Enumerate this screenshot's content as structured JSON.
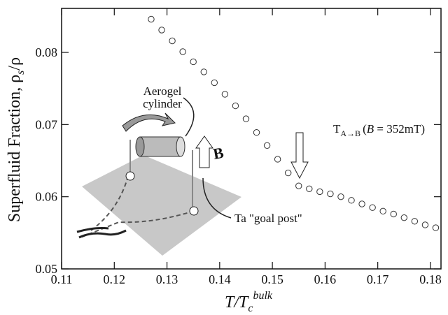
{
  "chart_data": {
    "type": "scatter",
    "xlabel_parts": [
      "T/T",
      "c",
      "bulk"
    ],
    "ylabel_parts": [
      "Superfluid Fraction, ρ",
      "s",
      "/ρ"
    ],
    "annotations": {
      "transition_parts": [
        "T",
        "A→B",
        "(",
        "B",
        " = 352mT)"
      ],
      "cylinder": [
        "Aerogel",
        "cylinder"
      ],
      "field": "B",
      "goal_post": "Ta \"goal post\""
    },
    "x": [
      0.127,
      0.129,
      0.131,
      0.133,
      0.135,
      0.137,
      0.139,
      0.141,
      0.143,
      0.145,
      0.147,
      0.149,
      0.151,
      0.153,
      0.155,
      0.157,
      0.159,
      0.161,
      0.163,
      0.165,
      0.167,
      0.169,
      0.171,
      0.173,
      0.175,
      0.177,
      0.179,
      0.181
    ],
    "values": [
      0.0846,
      0.0831,
      0.0816,
      0.0801,
      0.0787,
      0.0773,
      0.0758,
      0.0742,
      0.0726,
      0.0708,
      0.0689,
      0.0671,
      0.0652,
      0.0633,
      0.0615,
      0.0611,
      0.0607,
      0.0604,
      0.06,
      0.0595,
      0.059,
      0.0585,
      0.058,
      0.0576,
      0.0571,
      0.0566,
      0.0561,
      0.0557
    ],
    "marker_color": "#333333",
    "xlim": [
      0.11,
      0.182
    ],
    "ylim": [
      0.05,
      0.0861
    ],
    "xticks": [
      0.11,
      0.12,
      0.13,
      0.14,
      0.15,
      0.16,
      0.17,
      0.18
    ],
    "yticks": [
      0.05,
      0.06,
      0.07,
      0.08
    ]
  }
}
